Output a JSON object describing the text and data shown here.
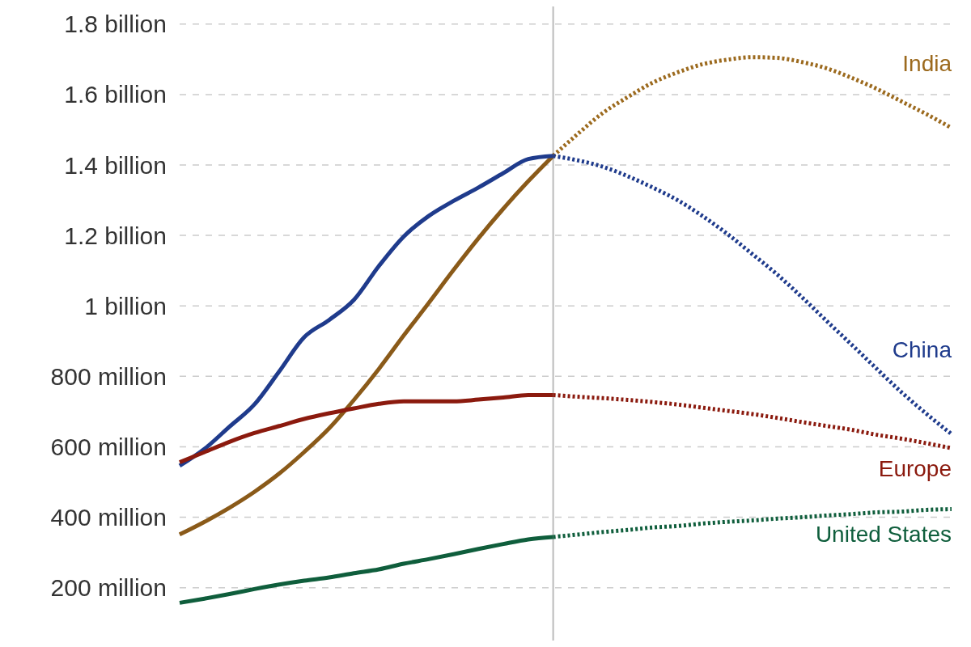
{
  "chart_data": {
    "type": "line",
    "categories": [
      null,
      null,
      null,
      null,
      null,
      null,
      null,
      null,
      null,
      null,
      null,
      null,
      null,
      null,
      null,
      null,
      null,
      null,
      null,
      null,
      null,
      null,
      null,
      null,
      null,
      null,
      null,
      null,
      null,
      null,
      null,
      null
    ],
    "series": [
      {
        "color": "#8a5a19",
        "line_style": "solid",
        "values": [
          351000000.0,
          387000000.0,
          427000000.0,
          472000000.0,
          524000000.0,
          585000000.0,
          652000000.0,
          733000000.0,
          821000000.0,
          916000000.0,
          1008000000.0,
          1102000000.0,
          1192000000.0,
          1276000000.0,
          1354000000.0,
          1426000000.0,
          null,
          null,
          null,
          null,
          null,
          null,
          null,
          null,
          null,
          null,
          null,
          null,
          null,
          null,
          null,
          null
        ]
      },
      {
        "name": "India",
        "color": "#9c6a1e",
        "line_style": "dotted",
        "values": [
          null,
          null,
          null,
          null,
          null,
          null,
          null,
          null,
          null,
          null,
          null,
          null,
          null,
          null,
          null,
          1426000000.0,
          1489000000.0,
          1548000000.0,
          1593000000.0,
          1634000000.0,
          1663000000.0,
          1686000000.0,
          1699000000.0,
          1706000000.0,
          1704000000.0,
          1692000000.0,
          1674000000.0,
          1647000000.0,
          1616000000.0,
          1580000000.0,
          1544000000.0,
          1505000000.0
        ]
      },
      {
        "color": "#1f3b8c",
        "line_style": "solid",
        "values": [
          546000000.0,
          594000000.0,
          657000000.0,
          720000000.0,
          814000000.0,
          911000000.0,
          960000000.0,
          1017000000.0,
          1113000000.0,
          1197000000.0,
          1255000000.0,
          1298000000.0,
          1336000000.0,
          1377000000.0,
          1417000000.0,
          1426000000.0,
          null,
          null,
          null,
          null,
          null,
          null,
          null,
          null,
          null,
          null,
          null,
          null,
          null,
          null,
          null,
          null
        ]
      },
      {
        "name": "China",
        "color": "#1f3b8c",
        "line_style": "dotted",
        "values": [
          null,
          null,
          null,
          null,
          null,
          null,
          null,
          null,
          null,
          null,
          null,
          null,
          null,
          null,
          null,
          1426000000.0,
          1413000000.0,
          1395000000.0,
          1368000000.0,
          1336000000.0,
          1300000000.0,
          1255000000.0,
          1204000000.0,
          1147000000.0,
          1089000000.0,
          1024000000.0,
          956000000.0,
          889000000.0,
          821000000.0,
          754000000.0,
          693000000.0,
          636000000.0
        ]
      },
      {
        "color": "#8b1a0e",
        "line_style": "solid",
        "values": [
          556000000.0,
          585000000.0,
          614000000.0,
          639000000.0,
          659000000.0,
          679000000.0,
          695000000.0,
          709000000.0,
          722000000.0,
          729000000.0,
          729000000.0,
          729000000.0,
          734000000.0,
          740000000.0,
          747000000.0,
          747000000.0,
          null,
          null,
          null,
          null,
          null,
          null,
          null,
          null,
          null,
          null,
          null,
          null,
          null,
          null,
          null,
          null
        ]
      },
      {
        "name": "Europe",
        "color": "#8b1a0e",
        "line_style": "dotted",
        "values": [
          null,
          null,
          null,
          null,
          null,
          null,
          null,
          null,
          null,
          null,
          null,
          null,
          null,
          null,
          null,
          747000000.0,
          742000000.0,
          738000000.0,
          733000000.0,
          727000000.0,
          720000000.0,
          711000000.0,
          702000000.0,
          693000000.0,
          682000000.0,
          670000000.0,
          659000000.0,
          648000000.0,
          634000000.0,
          623000000.0,
          610000000.0,
          596000000.0
        ]
      },
      {
        "color": "#0f5e3c",
        "line_style": "solid",
        "values": [
          157000000.0,
          169000000.0,
          182000000.0,
          196000000.0,
          209000000.0,
          220000000.0,
          229000000.0,
          241000000.0,
          252000000.0,
          268000000.0,
          281000000.0,
          295000000.0,
          310000000.0,
          324000000.0,
          337000000.0,
          344000000.0,
          null,
          null,
          null,
          null,
          null,
          null,
          null,
          null,
          null,
          null,
          null,
          null,
          null,
          null,
          null,
          null
        ]
      },
      {
        "name": "United States",
        "color": "#0f5e3c",
        "line_style": "dotted",
        "values": [
          null,
          null,
          null,
          null,
          null,
          null,
          null,
          null,
          null,
          null,
          null,
          null,
          null,
          null,
          null,
          344000000.0,
          351000000.0,
          358000000.0,
          364000000.0,
          371000000.0,
          375000000.0,
          382000000.0,
          387000000.0,
          391000000.0,
          396000000.0,
          400000000.0,
          405000000.0,
          409000000.0,
          414000000.0,
          416000000.0,
          421000000.0,
          423000000.0
        ]
      }
    ],
    "ylim": [
      50000000.0,
      1850000000.0
    ],
    "yticks": [
      {
        "value": 200000000.0,
        "label": "200 million"
      },
      {
        "value": 400000000.0,
        "label": "400 million"
      },
      {
        "value": 600000000.0,
        "label": "600 million"
      },
      {
        "value": 800000000.0,
        "label": "800 million"
      },
      {
        "value": 1000000000.0,
        "label": "1 billion"
      },
      {
        "value": 1200000000.0,
        "label": "1.2 billion"
      },
      {
        "value": 1400000000.0,
        "label": "1.4 billion"
      },
      {
        "value": 1600000000.0,
        "label": "1.6 billion"
      },
      {
        "value": 1800000000.0,
        "label": "1.8 billion"
      }
    ],
    "grid": "y",
    "tick_labels": "y"
  }
}
